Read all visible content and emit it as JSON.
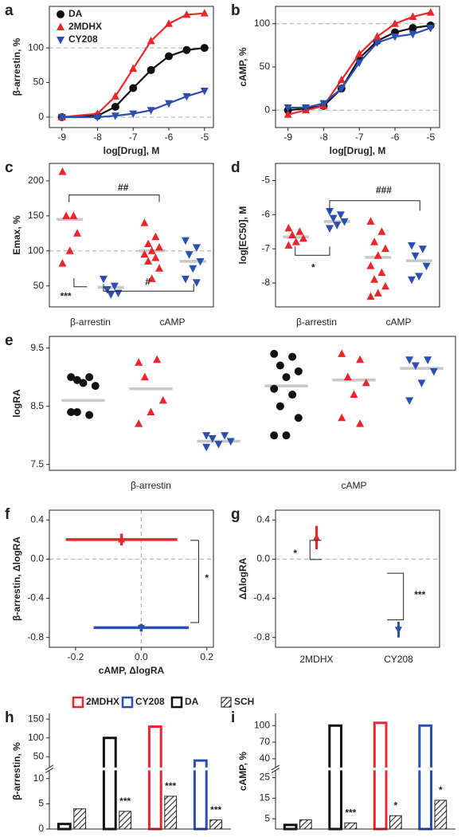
{
  "chart_data": [
    {
      "type": "line",
      "panel": "a",
      "xlabel": "log[Drug], M",
      "ylabel": "β-arrestin, %",
      "legend": true,
      "xlim": [
        -9.35,
        -4.75
      ],
      "xticks": [
        -9,
        -8,
        -7,
        -6,
        -5
      ],
      "ylim": [
        -15,
        160
      ],
      "yticks": [
        0,
        50,
        100
      ],
      "hlines": [
        0,
        100
      ],
      "x": [
        -9,
        -8,
        -7.5,
        -7,
        -6.5,
        -6,
        -5.5,
        -5
      ],
      "series": [
        {
          "name": "DA",
          "color": "#111111",
          "marker": "circle",
          "values": [
            0,
            2,
            15,
            42,
            68,
            88,
            97,
            100
          ]
        },
        {
          "name": "2MDHX",
          "color": "#e8262b",
          "marker": "triangle-up",
          "values": [
            0,
            5,
            30,
            70,
            110,
            135,
            148,
            150
          ]
        },
        {
          "name": "CY208",
          "color": "#2a4fb0",
          "marker": "triangle-down",
          "values": [
            0,
            0,
            2,
            5,
            10,
            20,
            30,
            38
          ]
        }
      ]
    },
    {
      "type": "line",
      "panel": "b",
      "xlabel": "log[Drug], M",
      "ylabel": "cAMP, %",
      "legend": false,
      "xlim": [
        -9.35,
        -4.75
      ],
      "xticks": [
        -9,
        -8,
        -7,
        -6,
        -5
      ],
      "ylim": [
        -20,
        120
      ],
      "yticks": [
        0,
        50,
        100
      ],
      "hlines": [
        0,
        100
      ],
      "x": [
        -9,
        -8.5,
        -8,
        -7.5,
        -7,
        -6.5,
        -6,
        -5.5,
        -5
      ],
      "series": [
        {
          "color": "#111111",
          "marker": "circle",
          "values": [
            0,
            2,
            5,
            25,
            60,
            80,
            90,
            95,
            98
          ]
        },
        {
          "color": "#e8262b",
          "marker": "triangle-up",
          "values": [
            -5,
            0,
            5,
            35,
            65,
            85,
            100,
            108,
            113
          ]
        },
        {
          "color": "#2a4fb0",
          "marker": "triangle-down",
          "values": [
            3,
            3,
            8,
            25,
            55,
            78,
            85,
            88,
            95
          ]
        }
      ]
    },
    {
      "type": "strip",
      "panel": "c",
      "ylabel": "Emax, %",
      "ylim": [
        20,
        225
      ],
      "yticks": [
        50,
        100,
        150,
        200
      ],
      "hlines": [
        100
      ],
      "categories": [
        "β-arrestin",
        "cAMP"
      ],
      "groups": [
        {
          "color": "#e8262b",
          "marker": "triangle-up",
          "values": [
            213,
            150,
            150,
            125,
            100,
            82
          ],
          "mean": 145
        },
        {
          "color": "#2a4fb0",
          "marker": "triangle-down",
          "values": [
            60,
            50,
            45,
            40,
            38
          ],
          "mean": 48
        },
        {
          "color": "#e8262b",
          "marker": "triangle-up",
          "values": [
            140,
            120,
            110,
            105,
            100,
            95,
            90,
            85,
            75,
            60
          ],
          "mean": 100
        },
        {
          "color": "#2a4fb0",
          "marker": "triangle-down",
          "values": [
            115,
            105,
            95,
            85,
            75,
            60,
            55
          ],
          "mean": 85
        }
      ],
      "annotations": [
        "##",
        "#",
        "***"
      ]
    },
    {
      "type": "strip",
      "panel": "d",
      "ylabel": "log[EC50], M",
      "ylim": [
        -8.7,
        -4.5
      ],
      "yticks": [
        -5,
        -6,
        -7,
        -8
      ],
      "categories": [
        "β-arrestin",
        "cAMP"
      ],
      "groups": [
        {
          "color": "#e8262b",
          "marker": "triangle-up",
          "values": [
            -6.4,
            -6.5,
            -6.6,
            -6.7,
            -6.8,
            -6.9
          ],
          "mean": -6.65
        },
        {
          "color": "#2a4fb0",
          "marker": "triangle-down",
          "values": [
            -5.9,
            -6.0,
            -6.1,
            -6.2,
            -6.3,
            -6.4
          ],
          "mean": -6.2
        },
        {
          "color": "#e8262b",
          "marker": "triangle-up",
          "values": [
            -6.2,
            -6.5,
            -6.8,
            -7.0,
            -7.2,
            -7.5,
            -7.7,
            -7.9,
            -8.1,
            -8.3,
            -8.4
          ],
          "mean": -7.25
        },
        {
          "color": "#2a4fb0",
          "marker": "triangle-down",
          "values": [
            -6.9,
            -7.0,
            -7.2,
            -7.5,
            -7.8,
            -7.9
          ],
          "mean": -7.35
        }
      ],
      "annotations": [
        "*",
        "###"
      ]
    },
    {
      "type": "strip",
      "panel": "e",
      "ylabel": "logRA",
      "ylim": [
        7.4,
        9.7
      ],
      "yticks": [
        7.5,
        8.5,
        9.5
      ],
      "categories": [
        "β-arrestin",
        "cAMP"
      ],
      "groups": [
        {
          "color": "#111111",
          "marker": "circle",
          "values": [
            9.0,
            9.0,
            8.95,
            8.85,
            8.9,
            8.4,
            8.35,
            8.4
          ],
          "mean": 8.6
        },
        {
          "color": "#e8262b",
          "marker": "triangle-up",
          "values": [
            9.25,
            9.3,
            9.0,
            8.6,
            8.4,
            8.2
          ],
          "mean": 8.8
        },
        {
          "color": "#2a4fb0",
          "marker": "triangle-down",
          "values": [
            8.0,
            8.0,
            7.95,
            7.9,
            7.85,
            7.8
          ],
          "mean": 7.9
        },
        {
          "color": "#111111",
          "marker": "circle",
          "values": [
            9.4,
            9.35,
            9.2,
            9.1,
            9.0,
            8.8,
            8.7,
            8.5,
            8.3,
            8.0,
            8.0
          ],
          "mean": 8.85
        },
        {
          "color": "#e8262b",
          "marker": "triangle-up",
          "values": [
            9.4,
            9.3,
            9.0,
            8.9,
            8.7,
            8.3,
            8.2
          ],
          "mean": 8.95
        },
        {
          "color": "#2a4fb0",
          "marker": "triangle-down",
          "values": [
            9.3,
            9.3,
            9.2,
            9.1,
            8.9,
            8.6
          ],
          "mean": 9.15
        }
      ]
    },
    {
      "type": "errorbar",
      "panel": "f",
      "xlabel": "cAMP, ΔlogRA",
      "ylabel": "β-arrestin, ΔlogRA",
      "xlim": [
        -0.28,
        0.22
      ],
      "xticks": [
        -0.2,
        {
          "value": 0,
          "label": "0.0"
        },
        0.2
      ],
      "ylim": [
        -0.9,
        0.5
      ],
      "yticks": [
        0.4,
        {
          "value": 0,
          "label": "0.0"
        },
        -0.4,
        -0.8
      ],
      "hlines": [
        0
      ],
      "vlines": [
        0
      ],
      "series": [
        {
          "color": "#e8262b",
          "marker": "triangle-up",
          "x": -0.06,
          "y": 0.2,
          "xerr": 0.17,
          "yerr": 0.06
        },
        {
          "color": "#2a4fb0",
          "marker": "triangle-down",
          "x": 0.0,
          "y": -0.7,
          "xerr": 0.145,
          "yerr": 0.04
        }
      ],
      "annotations": [
        "*"
      ]
    },
    {
      "type": "pointrange",
      "panel": "g",
      "ylabel": "ΔΔlogRA",
      "ylim": [
        -0.9,
        0.5
      ],
      "yticks": [
        0.4,
        {
          "value": 0,
          "label": "0.0"
        },
        -0.4,
        -0.8
      ],
      "hlines": [
        0
      ],
      "categories": [
        "2MDHX",
        "CY208"
      ],
      "values": [
        0.22,
        -0.72
      ],
      "errors": [
        0.12,
        0.08
      ],
      "colors": [
        "#e8262b",
        "#2a4fb0"
      ],
      "markers": [
        "triangle-up",
        "triangle-down"
      ],
      "annotations": [
        "*",
        "***"
      ]
    },
    {
      "type": "bar",
      "panel": "h",
      "ylabel": "β-arrestin, %",
      "ylim": [
        0,
        165
      ],
      "y_break": [
        11,
        30
      ],
      "yticks": [
        0,
        5,
        10,
        50,
        100,
        150
      ],
      "colors": [
        "#111111",
        "#111111",
        "#e8262b",
        "#2a4fb0"
      ],
      "series": [
        {
          "style": "open",
          "values": [
            1,
            100,
            130,
            40
          ]
        },
        {
          "style": "hatched",
          "values": [
            4,
            3.5,
            6.5,
            1.8
          ]
        }
      ],
      "legend": [
        {
          "name": "2MDHX",
          "color": "#e8262b"
        },
        {
          "name": "CY208",
          "color": "#2a4fb0"
        },
        {
          "name": "DA",
          "color": "#111111"
        },
        {
          "name": "SCH",
          "color": "#111111",
          "hatched": true
        }
      ],
      "annotations": [
        "***",
        "***",
        "***"
      ]
    },
    {
      "type": "bar",
      "panel": "i",
      "ylabel": "cAMP, %",
      "ylim": [
        0,
        122
      ],
      "y_break": [
        27,
        30
      ],
      "yticks": [
        5,
        15,
        25,
        40,
        70,
        100
      ],
      "colors": [
        "#111111",
        "#111111",
        "#e8262b",
        "#2a4fb0"
      ],
      "series": [
        {
          "style": "open",
          "values": [
            2,
            100,
            105,
            100
          ]
        },
        {
          "style": "hatched",
          "values": [
            4.5,
            3,
            6.5,
            14
          ]
        }
      ],
      "annotations": [
        "***",
        "*",
        "*"
      ]
    }
  ]
}
